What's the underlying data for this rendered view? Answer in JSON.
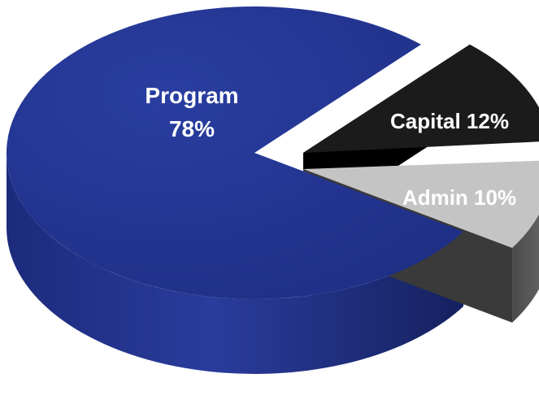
{
  "chart_data": {
    "type": "pie",
    "slices": [
      {
        "label": "Program",
        "value": 78,
        "value_text": "78%",
        "color": "#233592",
        "side_color": "#1a2a7a",
        "exploded": false
      },
      {
        "label": "Capital",
        "value": 12,
        "value_text": "12%",
        "color": "#1b1b1b",
        "side_color": "#050505",
        "exploded": true
      },
      {
        "label": "Admin",
        "value": 10,
        "value_text": "10%",
        "color": "#c4c4c4",
        "side_color": "#5e5e5e",
        "exploded": true
      }
    ],
    "label_color": "#ffffff",
    "background": "#ffffff",
    "style": "3d-exploded"
  }
}
